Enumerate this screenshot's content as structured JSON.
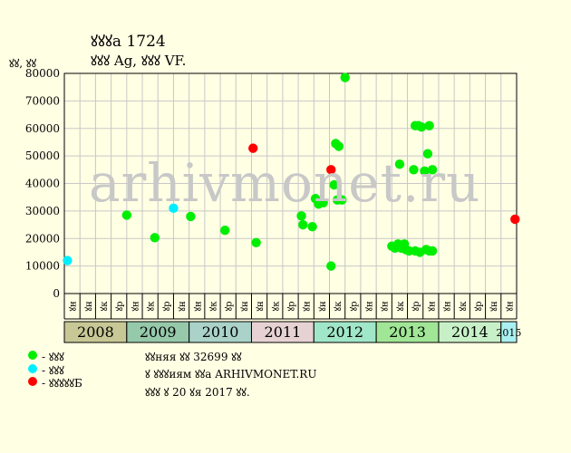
{
  "header": {
    "title": "ꙋꙋꙋа 1724",
    "subtitle": "ꙋꙋꙋ Ag, ꙋꙋꙋ VF.",
    "units": "ꙋꙋ, ꙋꙋ"
  },
  "watermark": "arhivmonet.ru",
  "legend": [
    {
      "label": "- ꙋꙋꙋ",
      "color": "#00ee00"
    },
    {
      "label": "- ꙋꙋꙋ",
      "color": "#00eeff"
    },
    {
      "label": "- ꙋꙋꙋꙋꙋБ",
      "color": "#ff0000"
    }
  ],
  "info": {
    "line1": "ꙋꙋняя ꙋꙋ 32699 ꙋꙋ",
    "line2": "ꙋ ꙋꙋꙋиям ꙋꙋа ARHIVMONET.RU",
    "line3": "ꙋꙋꙋ ꙋ 20 ꙋя 2017 ꙋꙋ."
  },
  "chart_data": {
    "type": "scatter",
    "ylim": [
      0,
      80000
    ],
    "yticks": [
      0,
      10000,
      20000,
      30000,
      40000,
      50000,
      60000,
      70000,
      80000
    ],
    "month_labels": [
      "ꙋн",
      "ꙋн",
      "ꙋк",
      "ꙋр",
      "ꙋн",
      "ꙋк",
      "ꙋр",
      "ꙋн",
      "ꙋн",
      "ꙋк",
      "ꙋр",
      "ꙋн",
      "ꙋн",
      "ꙋк",
      "ꙋр",
      "ꙋн",
      "ꙋн",
      "ꙋк",
      "ꙋр",
      "ꙋн",
      "ꙋн",
      "ꙋк",
      "ꙋр",
      "ꙋн",
      "ꙋн",
      "ꙋк",
      "ꙋр",
      "ꙋн",
      "ꙋн",
      "ꙋк",
      "ꙋр",
      "ꙋн",
      "ꙋн",
      "ꙋк",
      "ꙋр",
      "ꙋн",
      "ꙋн",
      "ꙋк",
      "ꙋр",
      "ꙋн",
      "ꙋн",
      "ꙋк",
      "ꙋр",
      "ꙋн",
      "ꙋн",
      "ꙋк",
      "ꙋр",
      "ꙋн",
      "ꙋн",
      "ꙋк",
      "ꙋр",
      "ꙋн",
      "ꙋн",
      "ꙋк",
      "ꙋр",
      "ꙋн",
      "ꙋн",
      "ꙋк",
      "ꙋр",
      "ꙋн",
      "ꙋн",
      "ꙋк",
      "ꙋр",
      "ꙋн",
      "ꙋн",
      "ꙋк",
      "ꙋр",
      "ꙋн",
      "ꙋн",
      "ꙋк",
      "ꙋр",
      "ꙋн",
      "ꙋн",
      "ꙋк",
      "ꙋр",
      "ꙋн",
      "ꙋн",
      "ꙋк",
      "ꙋр",
      "ꙋн",
      "ꙋн",
      "ꙋк",
      "ꙋр",
      "ꙋн",
      "ꙋн",
      "ꙋк",
      "ꙋр",
      "ꙋн",
      "ꙋн",
      "ꙋк",
      "ꙋр",
      "ꙋн",
      "ꙋн",
      "ꙋк",
      "ꙋр",
      "ꙋн",
      "ꙋн",
      "ꙋк",
      "ꙋр",
      "ꙋн",
      "ꙋн",
      "ꙋк",
      "ꙋр",
      "ꙋн",
      "ꙋн",
      "ꙋк",
      "ꙋр",
      "ꙋн",
      "ꙋн",
      "ꙋк",
      "ꙋр",
      "ꙋн",
      "ꙋн",
      "ꙋк",
      "ꙋр",
      "ꙋн",
      "ꙋн",
      "ꙋк",
      "ꙋр",
      "ꙋн",
      "ꙋн",
      "ꙋк"
    ],
    "years": [
      {
        "label": "2008",
        "color": "#c8c896"
      },
      {
        "label": "2009",
        "color": "#96c8aa"
      },
      {
        "label": "2010",
        "color": "#aad2c8"
      },
      {
        "label": "2011",
        "color": "#e6d2d2"
      },
      {
        "label": "2012",
        "color": "#a0e6c8"
      },
      {
        "label": "2013",
        "color": "#a0e696"
      },
      {
        "label": "2014",
        "color": "#c8f0c8"
      },
      {
        "label": "2015",
        "color": "#aaf0f0"
      }
    ],
    "series": [
      {
        "color": "#00ee00",
        "points": [
          [
            4.0,
            28500
          ],
          [
            5.8,
            20300
          ],
          [
            8.1,
            28000
          ],
          [
            10.3,
            23000
          ],
          [
            12.3,
            18500
          ],
          [
            15.2,
            28200
          ],
          [
            15.3,
            25000
          ],
          [
            15.9,
            24300
          ],
          [
            16.1,
            34500
          ],
          [
            16.3,
            32500
          ],
          [
            16.6,
            33000
          ],
          [
            17.1,
            10000
          ],
          [
            17.3,
            39500
          ],
          [
            17.4,
            54500
          ],
          [
            17.5,
            34000
          ],
          [
            17.6,
            53500
          ],
          [
            17.8,
            34000
          ],
          [
            18.0,
            78500
          ],
          [
            21.0,
            17200
          ],
          [
            21.2,
            16500
          ],
          [
            21.4,
            18000
          ],
          [
            21.5,
            47000
          ],
          [
            21.6,
            16500
          ],
          [
            21.8,
            18000
          ],
          [
            21.9,
            16000
          ],
          [
            22.1,
            15500
          ],
          [
            22.4,
            45000
          ],
          [
            22.5,
            15500
          ],
          [
            22.5,
            61000
          ],
          [
            22.7,
            61000
          ],
          [
            22.8,
            15000
          ],
          [
            22.9,
            60500
          ],
          [
            23.1,
            44500
          ],
          [
            23.2,
            16000
          ],
          [
            23.3,
            50800
          ],
          [
            23.4,
            61000
          ],
          [
            23.4,
            15500
          ],
          [
            23.6,
            45000
          ],
          [
            23.6,
            15500
          ]
        ]
      },
      {
        "color": "#00eeff",
        "points": [
          [
            0.2,
            12000
          ],
          [
            7.0,
            31000
          ]
        ]
      },
      {
        "color": "#ff0000",
        "points": [
          [
            12.1,
            52800
          ],
          [
            17.1,
            45000
          ],
          [
            28.9,
            27000
          ]
        ]
      }
    ]
  }
}
